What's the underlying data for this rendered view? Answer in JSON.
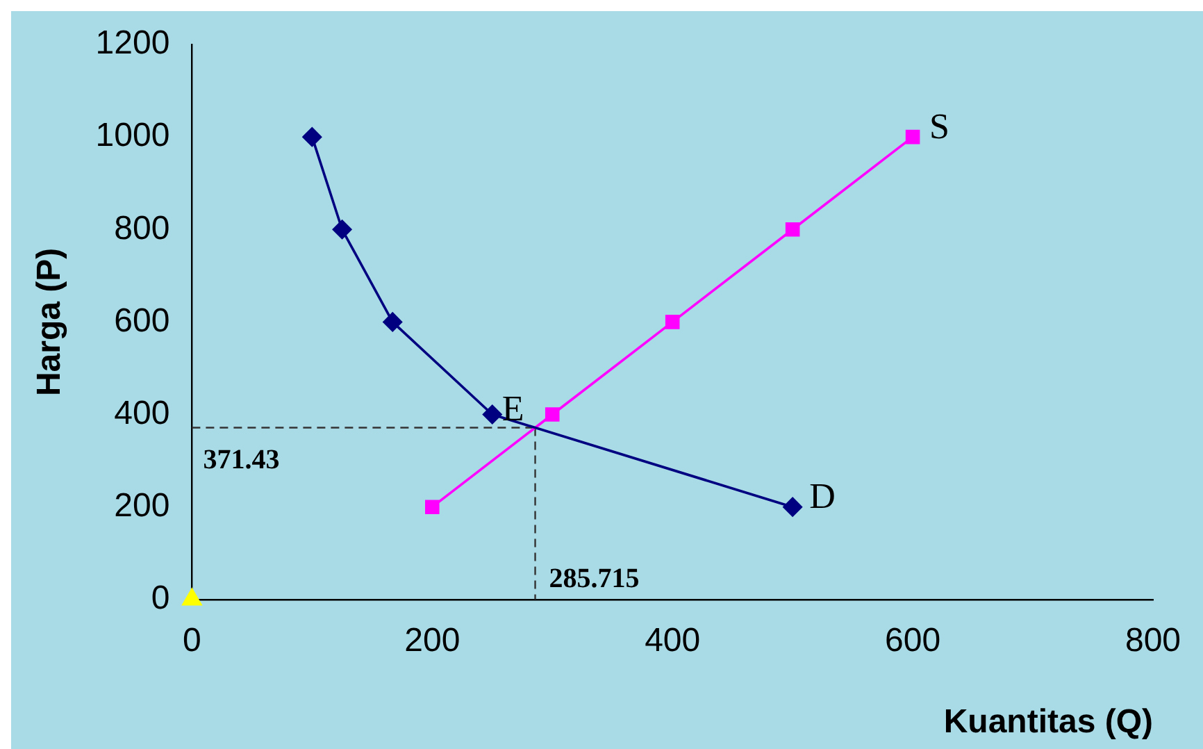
{
  "chart_data": {
    "type": "line",
    "xlabel": "Kuantitas (Q)",
    "ylabel": "Harga (P)",
    "xlim": [
      0,
      800
    ],
    "xticks": [
      0,
      200,
      400,
      600,
      800
    ],
    "ylim": [
      0,
      1200
    ],
    "yticks": [
      0,
      200,
      400,
      600,
      800,
      1000,
      1200
    ],
    "grid": false,
    "legend": false,
    "series": [
      {
        "name": "D",
        "color": "#000080",
        "marker": "diamond",
        "line_style": "solid",
        "x": [
          100,
          125,
          167,
          250,
          500
        ],
        "values": [
          1000,
          800,
          600,
          400,
          200
        ]
      },
      {
        "name": "S",
        "color": "#ff00ff",
        "marker": "square",
        "line_style": "solid",
        "x": [
          200,
          300,
          400,
          500,
          600
        ],
        "values": [
          200,
          400,
          600,
          800,
          1000
        ]
      },
      {
        "type": "scatter",
        "color": "#ffff00",
        "marker": "triangle",
        "x": [
          0
        ],
        "values": [
          0
        ]
      },
      {
        "color": "#333333",
        "marker": "none",
        "line_style": "dashed",
        "x": [
          0,
          285.715
        ],
        "values": [
          371.43,
          371.43
        ]
      },
      {
        "color": "#333333",
        "marker": "none",
        "line_style": "dashed",
        "x": [
          285.715,
          285.715
        ],
        "values": [
          371.43,
          0
        ]
      }
    ],
    "annotations": [
      "E",
      "371.43",
      "285.715"
    ]
  }
}
